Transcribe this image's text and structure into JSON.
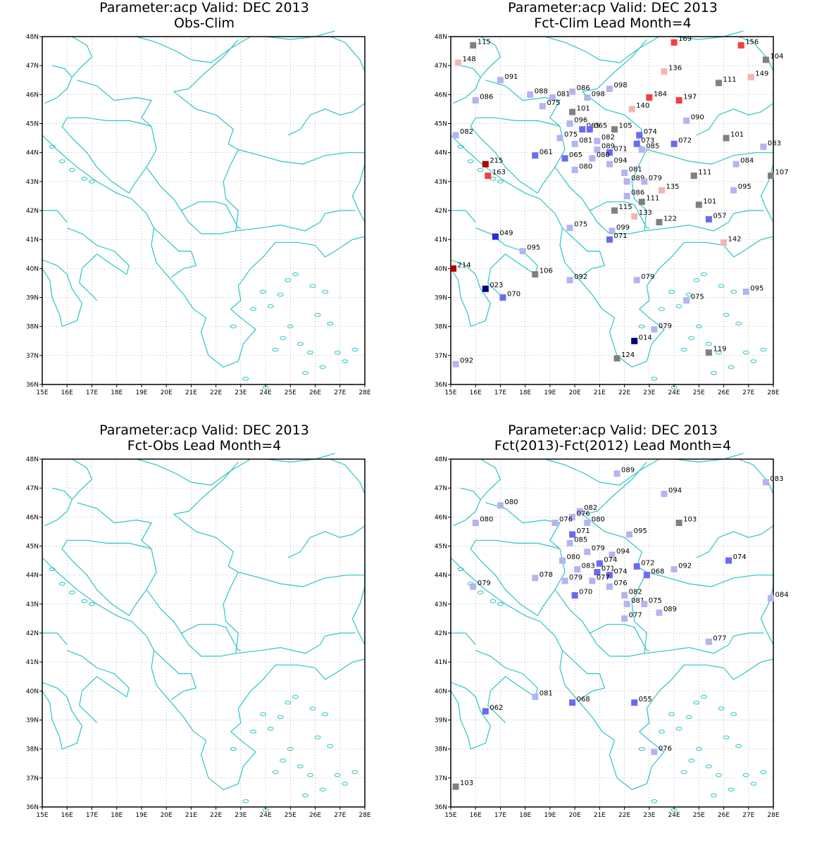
{
  "colors": {
    "coast": "#2ec4c4",
    "grid": "#9a9a9a",
    "frame": "#000000",
    "scale": {
      "darkblue": "#00007f",
      "blue": "#2a2ad6",
      "midblue": "#6a6af0",
      "lightblue": "#b4b4f2",
      "gray": "#808080",
      "lightred": "#f4b4b4",
      "red": "#f04040",
      "darkred": "#b00000"
    }
  },
  "axes": {
    "lon_range": [
      15,
      28
    ],
    "lat_range": [
      36,
      48
    ],
    "lon_ticks": [
      "15E",
      "16E",
      "17E",
      "18E",
      "19E",
      "20E",
      "21E",
      "22E",
      "23E",
      "24E",
      "25E",
      "26E",
      "27E",
      "28E"
    ],
    "lat_ticks": [
      "36N",
      "37N",
      "38N",
      "39N",
      "40N",
      "41N",
      "42N",
      "43N",
      "44N",
      "45N",
      "46N",
      "47N",
      "48N"
    ]
  },
  "panels": [
    {
      "title1": "Parameter:acp Valid: DEC 2013",
      "title2": "Obs-Clim",
      "stations": []
    },
    {
      "title1": "Parameter:acp Valid: DEC 2013",
      "title2": "Fct-Clim Lead Month=4",
      "stations": [
        {
          "lon": 15.9,
          "lat": 47.7,
          "label": "115",
          "color": "gray"
        },
        {
          "lon": 15.3,
          "lat": 47.1,
          "label": "148",
          "color": "lightred"
        },
        {
          "lon": 17.0,
          "lat": 46.5,
          "label": "091",
          "color": "lightblue"
        },
        {
          "lon": 16.0,
          "lat": 45.8,
          "label": "086",
          "color": "lightblue"
        },
        {
          "lon": 18.2,
          "lat": 46.0,
          "label": "088",
          "color": "lightblue"
        },
        {
          "lon": 19.1,
          "lat": 45.9,
          "label": "081",
          "color": "lightblue"
        },
        {
          "lon": 18.7,
          "lat": 45.6,
          "label": "075",
          "color": "lightblue"
        },
        {
          "lon": 19.9,
          "lat": 46.1,
          "label": "086",
          "color": "lightblue"
        },
        {
          "lon": 20.5,
          "lat": 45.9,
          "label": "098",
          "color": "lightblue"
        },
        {
          "lon": 21.4,
          "lat": 46.2,
          "label": "098",
          "color": "lightblue"
        },
        {
          "lon": 19.9,
          "lat": 45.4,
          "label": "101",
          "color": "gray"
        },
        {
          "lon": 19.8,
          "lat": 45.0,
          "label": "096",
          "color": "lightblue"
        },
        {
          "lon": 20.3,
          "lat": 44.8,
          "label": "065",
          "color": "midblue"
        },
        {
          "lon": 20.6,
          "lat": 44.8,
          "label": "065",
          "color": "midblue"
        },
        {
          "lon": 21.6,
          "lat": 44.8,
          "label": "105",
          "color": "gray"
        },
        {
          "lon": 19.4,
          "lat": 44.5,
          "label": "075",
          "color": "lightblue"
        },
        {
          "lon": 20.0,
          "lat": 44.3,
          "label": "081",
          "color": "lightblue"
        },
        {
          "lon": 20.9,
          "lat": 44.4,
          "label": "082",
          "color": "lightblue"
        },
        {
          "lon": 20.9,
          "lat": 44.1,
          "label": "089",
          "color": "lightblue"
        },
        {
          "lon": 21.4,
          "lat": 44.0,
          "label": "071",
          "color": "midblue"
        },
        {
          "lon": 20.7,
          "lat": 43.8,
          "label": "080",
          "color": "lightblue"
        },
        {
          "lon": 21.4,
          "lat": 43.6,
          "label": "094",
          "color": "lightblue"
        },
        {
          "lon": 19.6,
          "lat": 43.8,
          "label": "065",
          "color": "midblue"
        },
        {
          "lon": 18.4,
          "lat": 43.9,
          "label": "061",
          "color": "midblue"
        },
        {
          "lon": 20.0,
          "lat": 43.4,
          "label": "080",
          "color": "lightblue"
        },
        {
          "lon": 22.6,
          "lat": 44.6,
          "label": "074",
          "color": "midblue"
        },
        {
          "lon": 22.5,
          "lat": 44.3,
          "label": "073",
          "color": "midblue"
        },
        {
          "lon": 22.7,
          "lat": 44.1,
          "label": "085",
          "color": "lightblue"
        },
        {
          "lon": 24.0,
          "lat": 44.3,
          "label": "072",
          "color": "midblue"
        },
        {
          "lon": 24.5,
          "lat": 45.1,
          "label": "090",
          "color": "lightblue"
        },
        {
          "lon": 22.3,
          "lat": 45.5,
          "label": "140",
          "color": "lightred"
        },
        {
          "lon": 23.0,
          "lat": 45.9,
          "label": "184",
          "color": "red"
        },
        {
          "lon": 24.2,
          "lat": 45.8,
          "label": "197",
          "color": "red"
        },
        {
          "lon": 23.6,
          "lat": 46.8,
          "label": "136",
          "color": "lightred"
        },
        {
          "lon": 24.0,
          "lat": 47.8,
          "label": "169",
          "color": "red"
        },
        {
          "lon": 25.8,
          "lat": 46.4,
          "label": "111",
          "color": "gray"
        },
        {
          "lon": 26.7,
          "lat": 47.7,
          "label": "156",
          "color": "red"
        },
        {
          "lon": 27.7,
          "lat": 47.2,
          "label": "104",
          "color": "gray"
        },
        {
          "lon": 27.1,
          "lat": 46.6,
          "label": "149",
          "color": "lightred"
        },
        {
          "lon": 26.1,
          "lat": 44.5,
          "label": "101",
          "color": "gray"
        },
        {
          "lon": 27.6,
          "lat": 44.2,
          "label": "083",
          "color": "lightblue"
        },
        {
          "lon": 26.5,
          "lat": 43.6,
          "label": "084",
          "color": "lightblue"
        },
        {
          "lon": 27.9,
          "lat": 43.2,
          "label": "107",
          "color": "gray"
        },
        {
          "lon": 26.4,
          "lat": 42.7,
          "label": "095",
          "color": "lightblue"
        },
        {
          "lon": 24.8,
          "lat": 43.2,
          "label": "111",
          "color": "gray"
        },
        {
          "lon": 22.0,
          "lat": 43.3,
          "label": "081",
          "color": "lightblue"
        },
        {
          "lon": 22.1,
          "lat": 43.0,
          "label": "089",
          "color": "lightblue"
        },
        {
          "lon": 22.8,
          "lat": 43.0,
          "label": "079",
          "color": "lightblue"
        },
        {
          "lon": 23.5,
          "lat": 42.7,
          "label": "135",
          "color": "lightred"
        },
        {
          "lon": 22.1,
          "lat": 42.5,
          "label": "086",
          "color": "lightblue"
        },
        {
          "lon": 22.7,
          "lat": 42.3,
          "label": "111",
          "color": "gray"
        },
        {
          "lon": 25.0,
          "lat": 42.2,
          "label": "101",
          "color": "gray"
        },
        {
          "lon": 21.6,
          "lat": 42.0,
          "label": "115",
          "color": "gray"
        },
        {
          "lon": 22.4,
          "lat": 41.8,
          "label": "133",
          "color": "lightred"
        },
        {
          "lon": 23.4,
          "lat": 41.6,
          "label": "122",
          "color": "gray"
        },
        {
          "lon": 25.4,
          "lat": 41.7,
          "label": "057",
          "color": "midblue"
        },
        {
          "lon": 19.8,
          "lat": 41.4,
          "label": "075",
          "color": "lightblue"
        },
        {
          "lon": 21.5,
          "lat": 41.3,
          "label": "099",
          "color": "lightblue"
        },
        {
          "lon": 21.4,
          "lat": 41.0,
          "label": "071",
          "color": "midblue"
        },
        {
          "lon": 26.0,
          "lat": 40.9,
          "label": "142",
          "color": "lightred"
        },
        {
          "lon": 16.4,
          "lat": 43.6,
          "label": "215",
          "color": "darkred"
        },
        {
          "lon": 16.5,
          "lat": 43.2,
          "label": "163",
          "color": "red"
        },
        {
          "lon": 15.2,
          "lat": 44.6,
          "label": "082",
          "color": "lightblue"
        },
        {
          "lon": 16.8,
          "lat": 41.1,
          "label": "049",
          "color": "blue"
        },
        {
          "lon": 17.9,
          "lat": 40.6,
          "label": "095",
          "color": "lightblue"
        },
        {
          "lon": 15.1,
          "lat": 40.0,
          "label": "214",
          "color": "darkred"
        },
        {
          "lon": 18.4,
          "lat": 39.8,
          "label": "106",
          "color": "gray"
        },
        {
          "lon": 16.4,
          "lat": 39.3,
          "label": "023",
          "color": "darkblue"
        },
        {
          "lon": 17.1,
          "lat": 39.0,
          "label": "070",
          "color": "midblue"
        },
        {
          "lon": 19.8,
          "lat": 39.6,
          "label": "092",
          "color": "lightblue"
        },
        {
          "lon": 22.5,
          "lat": 39.6,
          "label": "079",
          "color": "lightblue"
        },
        {
          "lon": 24.5,
          "lat": 38.9,
          "label": "075",
          "color": "lightblue"
        },
        {
          "lon": 26.9,
          "lat": 39.2,
          "label": "095",
          "color": "lightblue"
        },
        {
          "lon": 23.2,
          "lat": 37.9,
          "label": "079",
          "color": "lightblue"
        },
        {
          "lon": 22.4,
          "lat": 37.5,
          "label": "014",
          "color": "darkblue"
        },
        {
          "lon": 25.4,
          "lat": 37.1,
          "label": "119",
          "color": "gray"
        },
        {
          "lon": 21.7,
          "lat": 36.9,
          "label": "124",
          "color": "gray"
        },
        {
          "lon": 15.2,
          "lat": 36.7,
          "label": "092",
          "color": "lightblue"
        }
      ]
    },
    {
      "title1": "Parameter:acp Valid: DEC 2013",
      "title2": "Fct-Obs Lead Month=4",
      "stations": []
    },
    {
      "title1": "Parameter:acp Valid: DEC 2013",
      "title2": "Fct(2013)-Fct(2012) Lead Month=4",
      "stations": [
        {
          "lon": 21.7,
          "lat": 47.5,
          "label": "089",
          "color": "lightblue"
        },
        {
          "lon": 23.6,
          "lat": 46.8,
          "label": "094",
          "color": "lightblue"
        },
        {
          "lon": 27.7,
          "lat": 47.2,
          "label": "083",
          "color": "lightblue"
        },
        {
          "lon": 17.0,
          "lat": 46.4,
          "label": "080",
          "color": "lightblue"
        },
        {
          "lon": 16.0,
          "lat": 45.8,
          "label": "080",
          "color": "lightblue"
        },
        {
          "lon": 20.2,
          "lat": 46.2,
          "label": "082",
          "color": "lightblue"
        },
        {
          "lon": 19.9,
          "lat": 46.0,
          "label": "076",
          "color": "lightblue"
        },
        {
          "lon": 19.2,
          "lat": 45.8,
          "label": "076",
          "color": "lightblue"
        },
        {
          "lon": 20.5,
          "lat": 45.8,
          "label": "080",
          "color": "lightblue"
        },
        {
          "lon": 24.2,
          "lat": 45.8,
          "label": "103",
          "color": "gray"
        },
        {
          "lon": 19.9,
          "lat": 45.4,
          "label": "071",
          "color": "midblue"
        },
        {
          "lon": 22.2,
          "lat": 45.4,
          "label": "095",
          "color": "lightblue"
        },
        {
          "lon": 19.8,
          "lat": 45.1,
          "label": "085",
          "color": "lightblue"
        },
        {
          "lon": 20.5,
          "lat": 44.8,
          "label": "079",
          "color": "lightblue"
        },
        {
          "lon": 21.5,
          "lat": 44.7,
          "label": "094",
          "color": "lightblue"
        },
        {
          "lon": 19.5,
          "lat": 44.5,
          "label": "080",
          "color": "lightblue"
        },
        {
          "lon": 21.0,
          "lat": 44.4,
          "label": "074",
          "color": "midblue"
        },
        {
          "lon": 20.1,
          "lat": 44.2,
          "label": "083",
          "color": "lightblue"
        },
        {
          "lon": 22.5,
          "lat": 44.3,
          "label": "072",
          "color": "midblue"
        },
        {
          "lon": 24.0,
          "lat": 44.2,
          "label": "092",
          "color": "lightblue"
        },
        {
          "lon": 26.2,
          "lat": 44.5,
          "label": "074",
          "color": "midblue"
        },
        {
          "lon": 20.9,
          "lat": 44.1,
          "label": "071",
          "color": "midblue"
        },
        {
          "lon": 21.4,
          "lat": 44.0,
          "label": "074",
          "color": "midblue"
        },
        {
          "lon": 22.9,
          "lat": 44.0,
          "label": "068",
          "color": "midblue"
        },
        {
          "lon": 18.4,
          "lat": 43.9,
          "label": "078",
          "color": "lightblue"
        },
        {
          "lon": 19.6,
          "lat": 43.8,
          "label": "079",
          "color": "lightblue"
        },
        {
          "lon": 20.7,
          "lat": 43.8,
          "label": "077",
          "color": "lightblue"
        },
        {
          "lon": 21.4,
          "lat": 43.6,
          "label": "076",
          "color": "lightblue"
        },
        {
          "lon": 15.9,
          "lat": 43.6,
          "label": "079",
          "color": "lightblue"
        },
        {
          "lon": 20.0,
          "lat": 43.3,
          "label": "070",
          "color": "midblue"
        },
        {
          "lon": 22.0,
          "lat": 43.3,
          "label": "082",
          "color": "lightblue"
        },
        {
          "lon": 22.1,
          "lat": 43.0,
          "label": "081",
          "color": "lightblue"
        },
        {
          "lon": 22.8,
          "lat": 43.0,
          "label": "075",
          "color": "lightblue"
        },
        {
          "lon": 27.9,
          "lat": 43.2,
          "label": "084",
          "color": "lightblue"
        },
        {
          "lon": 23.4,
          "lat": 42.7,
          "label": "089",
          "color": "lightblue"
        },
        {
          "lon": 22.0,
          "lat": 42.5,
          "label": "077",
          "color": "lightblue"
        },
        {
          "lon": 25.4,
          "lat": 41.7,
          "label": "077",
          "color": "lightblue"
        },
        {
          "lon": 18.4,
          "lat": 39.8,
          "label": "081",
          "color": "lightblue"
        },
        {
          "lon": 19.9,
          "lat": 39.6,
          "label": "068",
          "color": "midblue"
        },
        {
          "lon": 22.4,
          "lat": 39.6,
          "label": "055",
          "color": "midblue"
        },
        {
          "lon": 16.4,
          "lat": 39.3,
          "label": "062",
          "color": "midblue"
        },
        {
          "lon": 23.2,
          "lat": 37.9,
          "label": "076",
          "color": "lightblue"
        },
        {
          "lon": 15.2,
          "lat": 36.7,
          "label": "103",
          "color": "gray"
        }
      ]
    }
  ]
}
